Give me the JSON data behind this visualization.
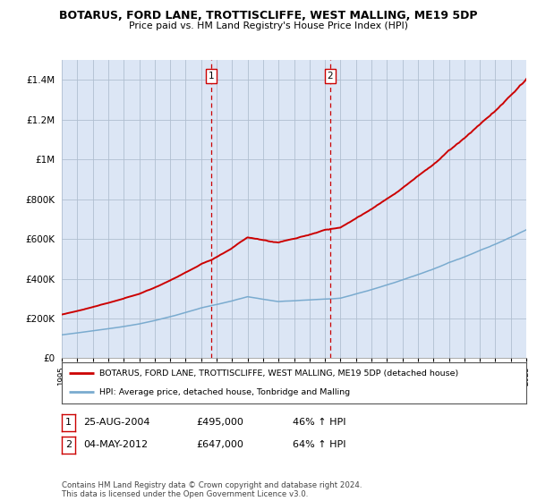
{
  "title": "BOTARUS, FORD LANE, TROTTISCLIFFE, WEST MALLING, ME19 5DP",
  "subtitle": "Price paid vs. HM Land Registry's House Price Index (HPI)",
  "ylabel_ticks": [
    "£0",
    "£200K",
    "£400K",
    "£600K",
    "£800K",
    "£1M",
    "£1.2M",
    "£1.4M"
  ],
  "ytick_values": [
    0,
    200000,
    400000,
    600000,
    800000,
    1000000,
    1200000,
    1400000
  ],
  "ylim": [
    0,
    1500000
  ],
  "plot_bg": "#dce6f5",
  "legend_entry1": "BOTARUS, FORD LANE, TROTTISCLIFFE, WEST MALLING, ME19 5DP (detached house)",
  "legend_entry2": "HPI: Average price, detached house, Tonbridge and Malling",
  "table_row1": [
    "1",
    "25-AUG-2004",
    "£495,000",
    "46% ↑ HPI"
  ],
  "table_row2": [
    "2",
    "04-MAY-2012",
    "£647,000",
    "64% ↑ HPI"
  ],
  "footer": "Contains HM Land Registry data © Crown copyright and database right 2024.\nThis data is licensed under the Open Government Licence v3.0.",
  "line_color_red": "#cc0000",
  "line_color_blue": "#7aabcf",
  "vline_color": "#cc0000",
  "grid_color": "#b0bfd0",
  "x_start_year": 1995,
  "x_end_year": 2025,
  "sale1_year": 2004.667,
  "sale1_price": 495000,
  "sale2_year": 2012.333,
  "sale2_price": 647000,
  "hpi_ratio1": 1.46,
  "hpi_ratio2": 1.64
}
